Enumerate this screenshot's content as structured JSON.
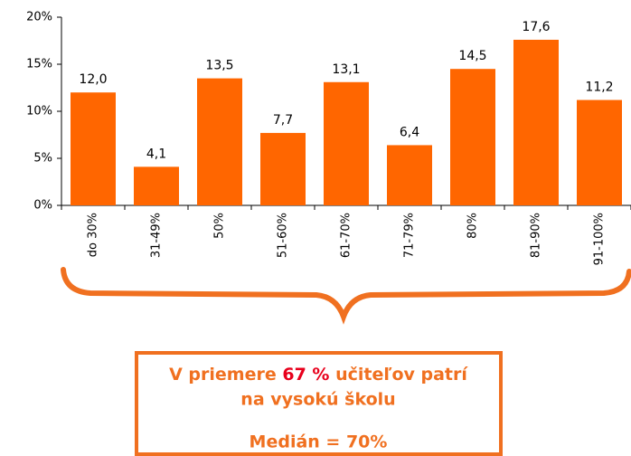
{
  "chart_data": {
    "type": "bar",
    "categories": [
      "do 30%",
      "31-49%",
      "50%",
      "51-60%",
      "61-70%",
      "71-79%",
      "80%",
      "81-90%",
      "91-100%"
    ],
    "values": [
      12.0,
      4.1,
      13.5,
      7.7,
      13.1,
      6.4,
      14.5,
      17.6,
      11.2
    ],
    "value_labels": [
      "12,0",
      "4,1",
      "13,5",
      "7,7",
      "13,1",
      "6,4",
      "14,5",
      "17,6",
      "11,2"
    ],
    "color": "#ff6600",
    "ylim": [
      0,
      20
    ],
    "yticks": [
      {
        "value": 0,
        "label": "0%"
      },
      {
        "value": 5,
        "label": "5%"
      },
      {
        "value": 10,
        "label": "10%"
      },
      {
        "value": 15,
        "label": "15%"
      },
      {
        "value": 20,
        "label": "20%"
      }
    ],
    "grid": false
  },
  "annotation": {
    "line1_before": "V priemere ",
    "line1_highlight": "67 %",
    "line1_after": " učiteľov patrí",
    "line2": "na vysokú školu",
    "median": "Medián = 70%"
  }
}
